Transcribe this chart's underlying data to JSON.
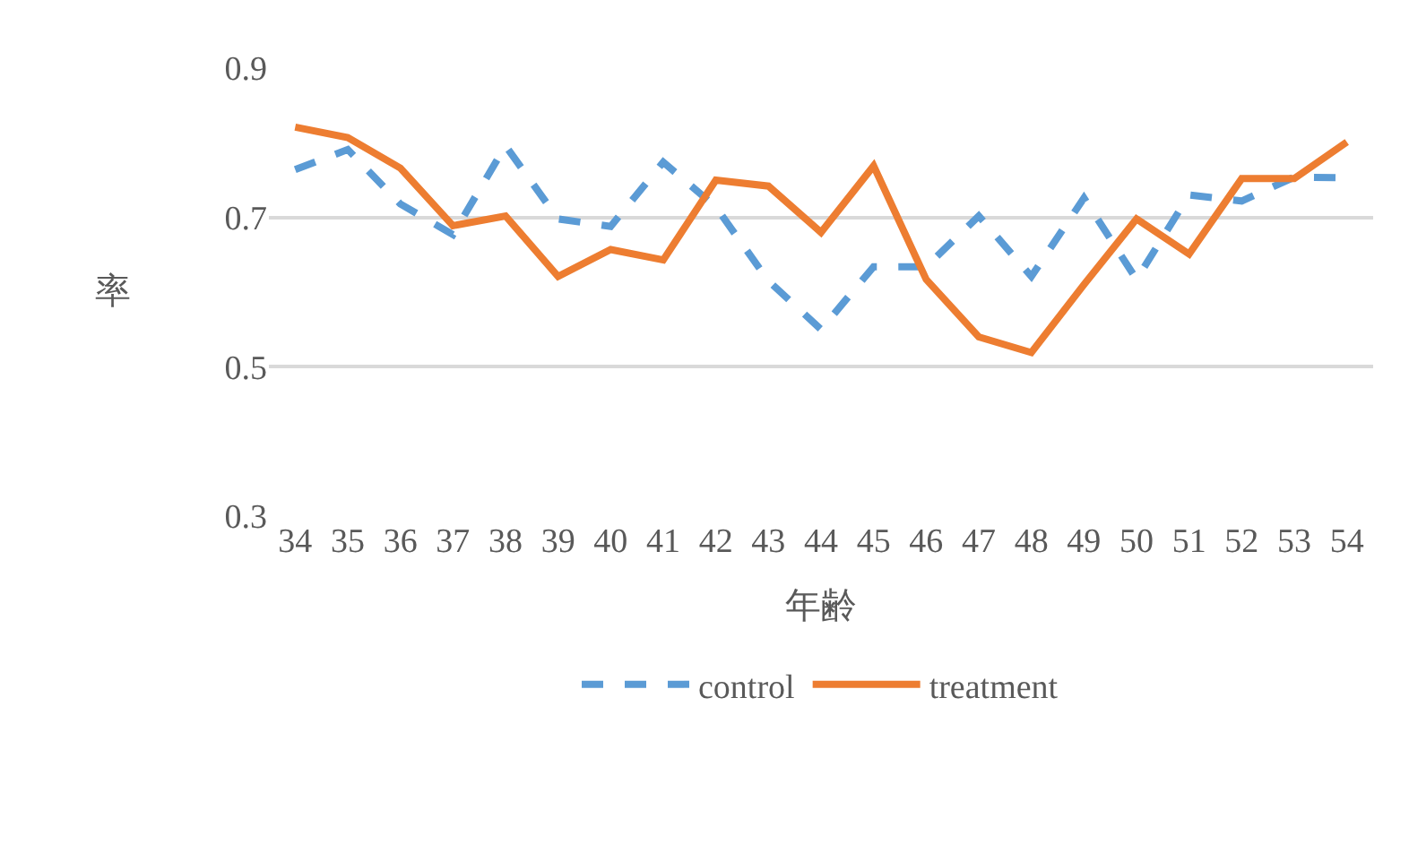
{
  "chart_data": {
    "type": "line",
    "xlabel": "年齢",
    "ylabel": "率",
    "categories": [
      "34",
      "35",
      "36",
      "37",
      "38",
      "39",
      "40",
      "41",
      "42",
      "43",
      "44",
      "45",
      "46",
      "47",
      "48",
      "49",
      "50",
      "51",
      "52",
      "53",
      "54"
    ],
    "series": [
      {
        "name": "control",
        "color": "#5b9bd5",
        "line_style": "dashed",
        "values": [
          0.764,
          0.791,
          0.718,
          0.677,
          0.796,
          0.698,
          0.688,
          0.774,
          0.714,
          0.615,
          0.55,
          0.634,
          0.634,
          0.702,
          0.621,
          0.726,
          0.617,
          0.73,
          0.722,
          0.754,
          0.753
        ]
      },
      {
        "name": "treatment",
        "color": "#ed7d31",
        "line_style": "solid",
        "values": [
          0.821,
          0.807,
          0.766,
          0.689,
          0.702,
          0.621,
          0.657,
          0.643,
          0.75,
          0.742,
          0.68,
          0.769,
          0.617,
          0.54,
          0.519,
          0.61,
          0.698,
          0.651,
          0.752,
          0.752,
          0.801
        ]
      }
    ],
    "ylim": [
      0.3,
      0.9
    ],
    "yticks": [
      0.3,
      0.5,
      0.7,
      0.9
    ],
    "grid": "y",
    "legend": "bottom",
    "marker": "none"
  }
}
